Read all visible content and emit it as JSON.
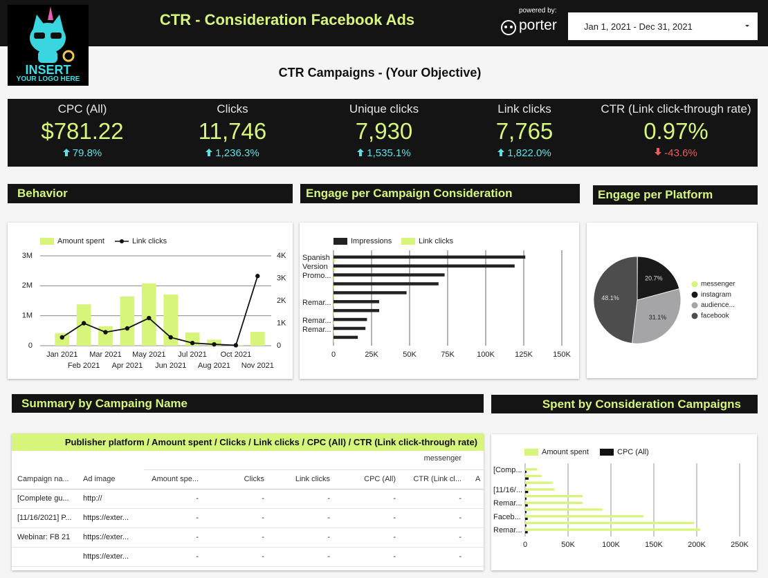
{
  "header": {
    "logo": [
      "INSERT",
      "YOUR LOGO HERE"
    ],
    "title": "CTR - Consideration Facebook Ads",
    "powered_by": "powered by:",
    "brand": "porter",
    "date_range": "Jan 1, 2021 - Dec 31, 2021"
  },
  "subtitle": "CTR Campaigns - (Your Objective)",
  "kpis": [
    {
      "label": "CPC (All)",
      "value": "$781.22",
      "change": "79.8%",
      "direction": "up"
    },
    {
      "label": "Clicks",
      "value": "11,746",
      "change": "1,236.3%",
      "direction": "up"
    },
    {
      "label": "Unique clicks",
      "value": "7,930",
      "change": "1,535.1%",
      "direction": "up"
    },
    {
      "label": "Link clicks",
      "value": "7,765",
      "change": "1,822.0%",
      "direction": "up"
    },
    {
      "label": "CTR (Link click-through rate)",
      "value": "0.97%",
      "change": "-43.6%",
      "direction": "down"
    }
  ],
  "sections": [
    "Behavior",
    "Engage per Campaign Consideration",
    "Engage per Platform",
    "Summary by Campaing Name",
    "Spent by Consideration Campaigns"
  ],
  "chart_data": [
    {
      "type": "combo",
      "categories": [
        "Jan 2021",
        "Feb 2021",
        "Mar 2021",
        "Apr 2021",
        "May 2021",
        "Jun 2021",
        "Jul 2021",
        "Aug 2021",
        "Oct 2021",
        "Nov 2021"
      ],
      "series": [
        {
          "name": "Amount spent",
          "type": "bar",
          "color": "#d6f57a",
          "values": [
            420000,
            1380000,
            650000,
            1640000,
            2080000,
            1710000,
            440000,
            200000,
            20000,
            460000
          ]
        },
        {
          "name": "Link clicks",
          "type": "line",
          "axis": "y2",
          "color": "#111111",
          "values": [
            370,
            1000,
            600,
            770,
            1230,
            370,
            120,
            60,
            20,
            3100
          ]
        }
      ],
      "ylim": [
        0,
        3000000
      ],
      "yticks": [
        0,
        {
          "value": 1000000,
          "label": "1M"
        },
        {
          "value": 2000000,
          "label": "2M"
        },
        {
          "value": 3000000,
          "label": "3M"
        }
      ],
      "y2lim": [
        0,
        4000
      ],
      "y2ticks": [
        0,
        {
          "value": 1000,
          "label": "1K"
        },
        {
          "value": 2000,
          "label": "2K"
        },
        {
          "value": 3000,
          "label": "3K"
        },
        {
          "value": 4000,
          "label": "4K"
        }
      ],
      "grid": true
    },
    {
      "type": "hbar",
      "categories": [
        "Spanish Version",
        null,
        "Promo...",
        null,
        null,
        "Remar...",
        null,
        "Remar...",
        "Remar...",
        null
      ],
      "series": [
        {
          "name": "Impressions",
          "color": "#222222",
          "values": [
            126000,
            119000,
            73000,
            69000,
            48000,
            30000,
            30000,
            22000,
            21000,
            16000
          ]
        },
        {
          "name": "Link clicks",
          "color": "#d6f57a",
          "values": [
            1200,
            1100,
            700,
            650,
            500,
            300,
            300,
            250,
            200,
            150
          ]
        }
      ],
      "xlim": [
        0,
        150000
      ],
      "xticks": [
        0,
        {
          "value": 25000,
          "label": "25K"
        },
        {
          "value": 50000,
          "label": "50K"
        },
        {
          "value": 75000,
          "label": "75K"
        },
        {
          "value": 100000,
          "label": "100K"
        },
        {
          "value": 125000,
          "label": "125K"
        },
        {
          "value": 150000,
          "label": "150K"
        }
      ],
      "grid": true
    },
    {
      "type": "pie",
      "categories": [
        "messenger",
        "instagram",
        "audience...",
        "facebook"
      ],
      "values": [
        0.1,
        20.7,
        31.1,
        48.1
      ],
      "value_labels": [
        null,
        "20.7%",
        "31.1%",
        "48.1%"
      ],
      "colors": [
        "#d6f57a",
        "#1a1a1a",
        "#a5a5a8",
        "#4d4d4d"
      ],
      "legend": "right"
    },
    {
      "type": "hbar",
      "categories": [
        "[Comp...",
        null,
        null,
        "[11/16/...",
        null,
        "Remar...",
        null,
        "Faceb...",
        null,
        "Remar..."
      ],
      "series": [
        {
          "name": "Amount spent",
          "color": "#d6f57a",
          "values": [
            14000,
            19000,
            32000,
            34000,
            67000,
            67000,
            90000,
            138000,
            197000,
            204000
          ]
        },
        {
          "name": "CPC (All)",
          "color": "#111111",
          "values": [
            1500,
            4000,
            1500,
            3500,
            1500,
            3000,
            1500,
            3000,
            1500,
            3000
          ]
        }
      ],
      "xlim": [
        0,
        250000
      ],
      "xticks": [
        0,
        {
          "value": 50000,
          "label": "50K"
        },
        {
          "value": 100000,
          "label": "100K"
        },
        {
          "value": 150000,
          "label": "150K"
        },
        {
          "value": 200000,
          "label": "200K"
        },
        {
          "value": 250000,
          "label": "250K"
        }
      ],
      "grid": true
    }
  ],
  "table": {
    "title": "Publisher platform / Amount spent / Clicks / Link clicks / CPC (All) / CTR (Link click-through rate)",
    "group": "messenger",
    "columns": [
      "Campaign na...",
      "Ad image",
      "Amount spe...",
      "Clicks",
      "Link clicks",
      "CPC (All)",
      "CTR (Link cl...",
      "A"
    ],
    "rows": [
      [
        "[Complete gu...",
        "http://",
        "-",
        "-",
        "-",
        "-",
        "-"
      ],
      [
        "[11/16/2021] P...",
        "https://exter...",
        "-",
        "-",
        "-",
        "-",
        "-"
      ],
      [
        "Webinar: FB 21",
        "https://exter...",
        "-",
        "-",
        "-",
        "-",
        "-"
      ],
      [
        null,
        "https://exter...",
        "-",
        "-",
        "-",
        "-",
        "-"
      ]
    ]
  }
}
